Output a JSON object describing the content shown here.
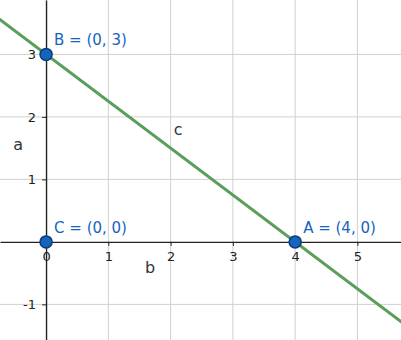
{
  "chart_data": {
    "type": "scatter",
    "xlim": [
      -0.74,
      5.7
    ],
    "ylim": [
      -1.57,
      3.87
    ],
    "xticks": [
      0,
      1,
      2,
      3,
      4,
      5
    ],
    "yticks": [
      -1,
      1,
      2,
      3
    ],
    "grid": true,
    "series": [
      {
        "type": "scatter",
        "marker": "circle",
        "color": "#1565c0",
        "x": [
          4,
          0,
          0
        ],
        "values": [
          0,
          3,
          0
        ],
        "labels": [
          "A = (4, 0)",
          "B = (0, 3)",
          "C = (0, 0)"
        ]
      },
      {
        "type": "line",
        "line_style": "solid",
        "color": "#5a9e5a",
        "x": [
          -1,
          6
        ],
        "values": [
          3.75,
          -1.5
        ]
      }
    ],
    "annotations": [
      {
        "text": "a",
        "x": -0.45,
        "y": 1.55
      },
      {
        "text": "b",
        "x": 1.67,
        "y": -0.42
      },
      {
        "text": "c",
        "x": 2.12,
        "y": 1.79
      }
    ]
  }
}
